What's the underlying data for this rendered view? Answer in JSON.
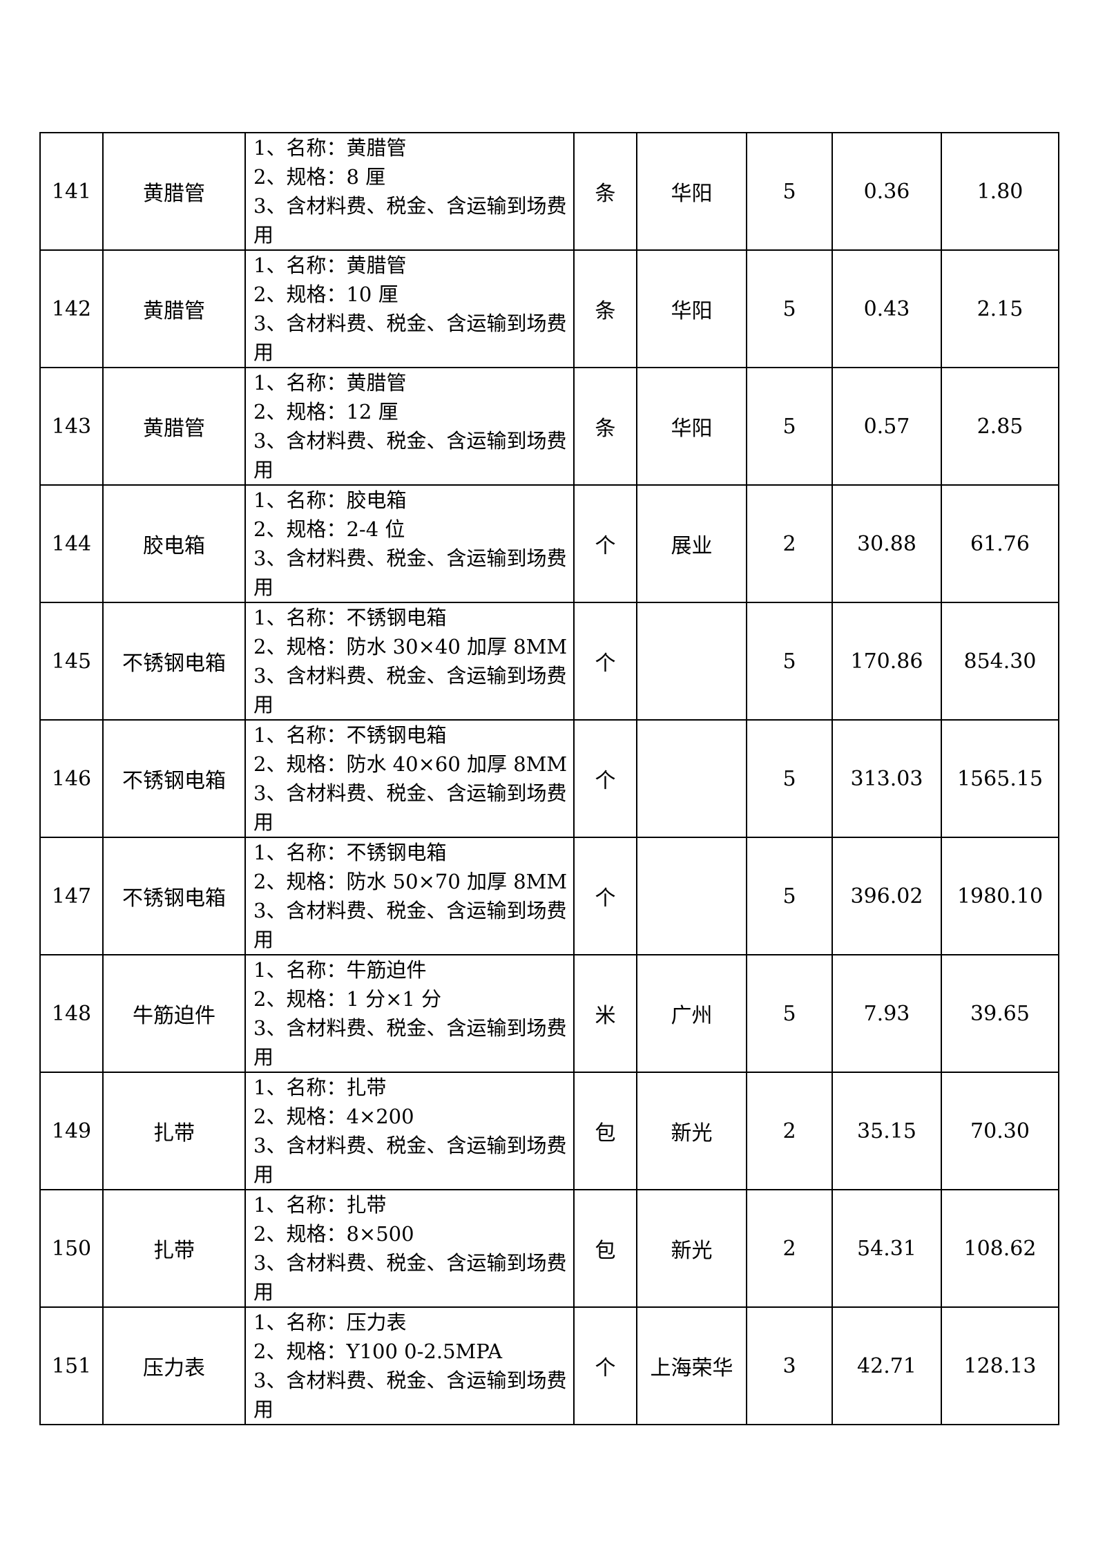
{
  "table": {
    "rows": [
      {
        "serial": "141",
        "name": "黄腊管",
        "desc_lines": [
          "1、名称：黄腊管",
          "2、规格：8 厘",
          "3、含材料费、税金、含运输到场费",
          "用"
        ],
        "unit": "条",
        "brand": "华阳",
        "qty": "5",
        "unit_price": "0.36",
        "total": "1.80"
      },
      {
        "serial": "142",
        "name": "黄腊管",
        "desc_lines": [
          "1、名称：黄腊管",
          "2、规格：10 厘",
          "3、含材料费、税金、含运输到场费",
          "用"
        ],
        "unit": "条",
        "brand": "华阳",
        "qty": "5",
        "unit_price": "0.43",
        "total": "2.15"
      },
      {
        "serial": "143",
        "name": "黄腊管",
        "desc_lines": [
          "1、名称：黄腊管",
          "2、规格：12 厘",
          "3、含材料费、税金、含运输到场费",
          "用"
        ],
        "unit": "条",
        "brand": "华阳",
        "qty": "5",
        "unit_price": "0.57",
        "total": "2.85"
      },
      {
        "serial": "144",
        "name": "胶电箱",
        "desc_lines": [
          "1、名称：胶电箱",
          "2、规格：2-4 位",
          "3、含材料费、税金、含运输到场费",
          "用"
        ],
        "unit": "个",
        "brand": "展业",
        "qty": "2",
        "unit_price": "30.88",
        "total": "61.76"
      },
      {
        "serial": "145",
        "name": "不锈钢电箱",
        "desc_lines": [
          "1、名称：不锈钢电箱",
          "2、规格：防水 30×40 加厚 8MM",
          "3、含材料费、税金、含运输到场费",
          "用"
        ],
        "unit": "个",
        "brand": "",
        "qty": "5",
        "unit_price": "170.86",
        "total": "854.30"
      },
      {
        "serial": "146",
        "name": "不锈钢电箱",
        "desc_lines": [
          "1、名称：不锈钢电箱",
          "2、规格：防水 40×60 加厚 8MM",
          "3、含材料费、税金、含运输到场费",
          "用"
        ],
        "unit": "个",
        "brand": "",
        "qty": "5",
        "unit_price": "313.03",
        "total": "1565.15"
      },
      {
        "serial": "147",
        "name": "不锈钢电箱",
        "desc_lines": [
          "1、名称：不锈钢电箱",
          "2、规格：防水 50×70 加厚 8MM",
          "3、含材料费、税金、含运输到场费",
          "用"
        ],
        "unit": "个",
        "brand": "",
        "qty": "5",
        "unit_price": "396.02",
        "total": "1980.10"
      },
      {
        "serial": "148",
        "name": "牛筋迫件",
        "desc_lines": [
          "1、名称：牛筋迫件",
          "2、规格：1 分×1 分",
          "3、含材料费、税金、含运输到场费",
          "用"
        ],
        "unit": "米",
        "brand": "广州",
        "qty": "5",
        "unit_price": "7.93",
        "total": "39.65"
      },
      {
        "serial": "149",
        "name": "扎带",
        "desc_lines": [
          "1、名称：扎带",
          "2、规格：4×200",
          "3、含材料费、税金、含运输到场费",
          "用"
        ],
        "unit": "包",
        "brand": "新光",
        "qty": "2",
        "unit_price": "35.15",
        "total": "70.30"
      },
      {
        "serial": "150",
        "name": "扎带",
        "desc_lines": [
          "1、名称：扎带",
          "2、规格：8×500",
          "3、含材料费、税金、含运输到场费",
          "用"
        ],
        "unit": "包",
        "brand": "新光",
        "qty": "2",
        "unit_price": "54.31",
        "total": "108.62"
      },
      {
        "serial": "151",
        "name": "压力表",
        "desc_lines": [
          "1、名称：压力表",
          "2、规格：Y100 0-2.5MPA",
          "3、含材料费、税金、含运输到场费",
          "用"
        ],
        "unit": "个",
        "brand": "上海荣华",
        "qty": "3",
        "unit_price": "42.71",
        "total": "128.13"
      }
    ]
  }
}
